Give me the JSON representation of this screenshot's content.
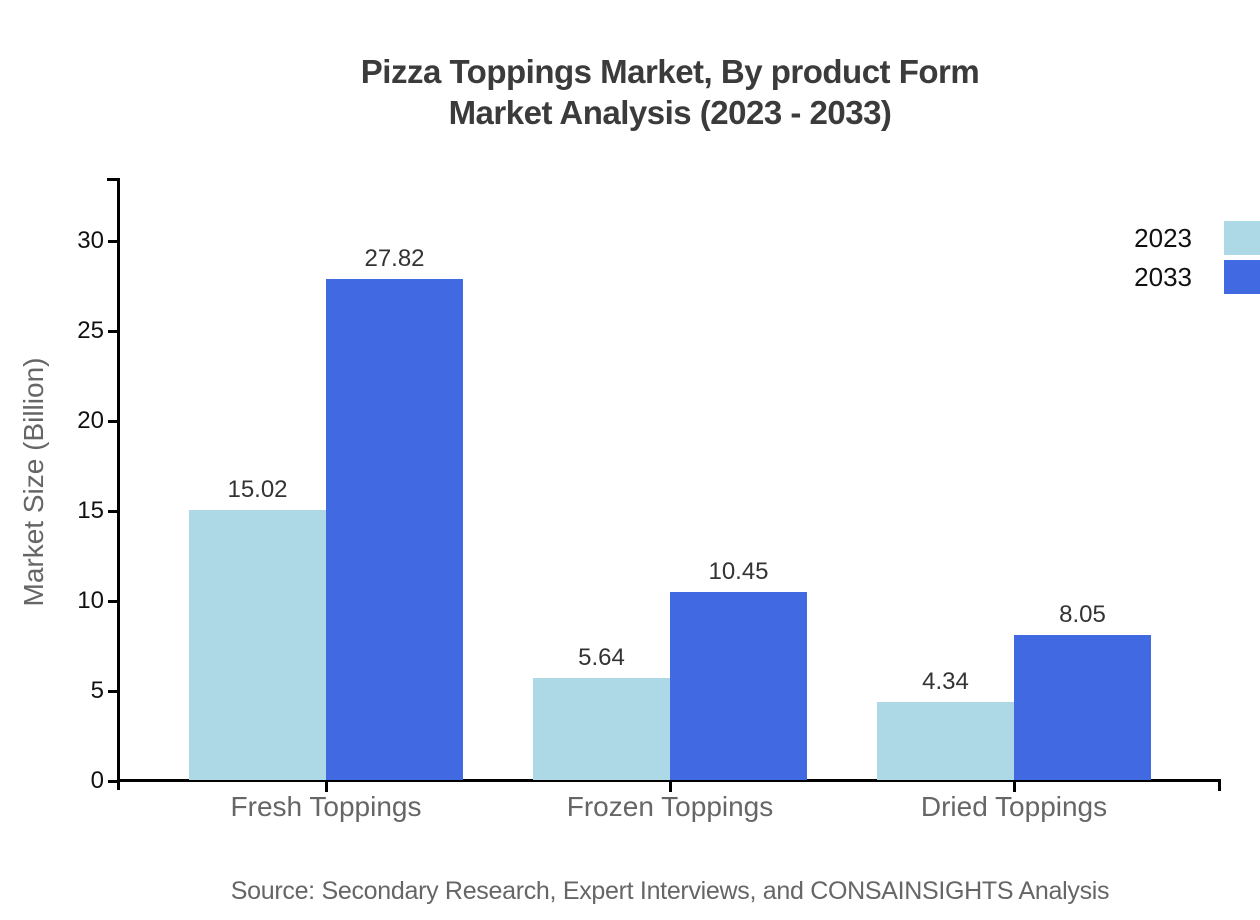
{
  "title": {
    "line1": "Pizza Toppings Market, By product Form",
    "line2": "Market Analysis (2023 - 2033)"
  },
  "legend": {
    "items": [
      {
        "label": "2023",
        "color": "#ADD8E6"
      },
      {
        "label": "2033",
        "color": "#4169E1"
      }
    ]
  },
  "source": {
    "text": "Source: Secondary Research, Expert Interviews, and CONSAINSIGHTS Analysis"
  },
  "colors": {
    "series_2023": "#ADD8E6",
    "series_2033": "#4169E1",
    "axis": "#000000",
    "title_text": "#3b3b3b",
    "tick_label_text": "#111111",
    "value_label_text": "#333333",
    "muted_text": "#666666",
    "background": "#ffffff"
  },
  "chart_data": {
    "type": "bar",
    "title": "Pizza Toppings Market, By product Form Market Analysis (2023 - 2033)",
    "categories": [
      "Fresh Toppings",
      "Frozen Toppings",
      "Dried Toppings"
    ],
    "series": [
      {
        "name": "2023",
        "color": "#ADD8E6",
        "values": [
          15.02,
          5.64,
          4.34
        ]
      },
      {
        "name": "2033",
        "color": "#4169E1",
        "values": [
          27.82,
          10.45,
          8.05
        ]
      }
    ],
    "value_labels": [
      "15.02",
      "27.82",
      "5.64",
      "10.45",
      "4.34",
      "8.05"
    ],
    "xlabel": "",
    "ylabel": "Market Size (Billion)",
    "yticks": [
      0,
      5,
      10,
      15,
      20,
      25,
      30
    ],
    "ylim": [
      0,
      33.5
    ],
    "grid": false,
    "legend_position": "top-right",
    "bar_value_labels": true
  }
}
